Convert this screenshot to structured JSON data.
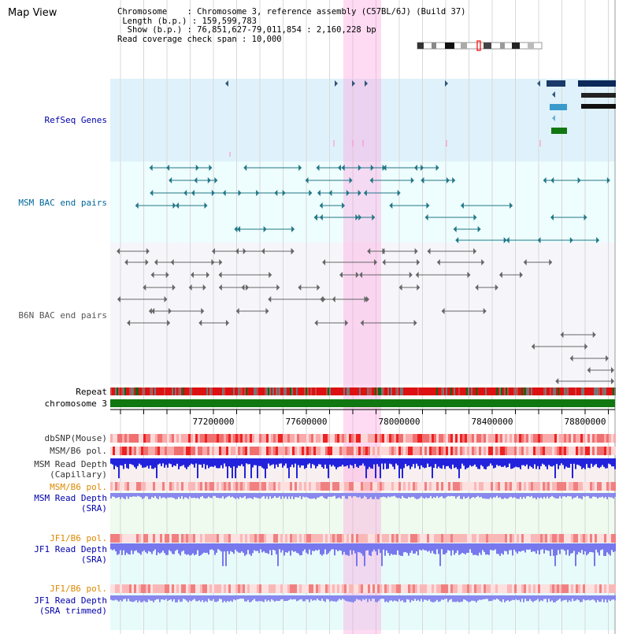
{
  "app": {
    "title": "Map View"
  },
  "info": {
    "chromosome": "Chromosome    : Chromosome 3, reference assembly (C57BL/6J) (Build 37)",
    "length": " Length (b.p.) : 159,599,783",
    "show": "  Show (b.p.) : 76,851,627-79,011,854 : 2,160,228 bp",
    "coverage": "Read coverage check span : 10,000"
  },
  "tracks": {
    "refseq": "RefSeq Genes",
    "msm_bac": "MSM BAC end pairs",
    "b6n_bac": "B6N BAC end pairs",
    "repeat": "Repeat",
    "chromosome": "chromosome 3",
    "dbsnp": "dbSNP(Mouse)",
    "msm_b6_pol_1": "MSM/B6 pol.",
    "msm_read_cap_1": "MSM Read Depth",
    "msm_read_cap_2": "(Capillary)",
    "msm_b6_pol_2": "MSM/B6 pol.",
    "msm_read_sra_1": "MSM Read Depth",
    "msm_read_sra_2": "(SRA)",
    "jf1_b6_pol_1": "JF1/B6 pol.",
    "jf1_read_sra_1": "JF1 Read Depth",
    "jf1_read_sra_2": "(SRA)",
    "jf1_b6_pol_2": "JF1/B6 pol.",
    "jf1_read_trim_1": "JF1 Read Depth",
    "jf1_read_trim_2": "(SRA trimmed)"
  },
  "axis": {
    "ticks": [
      "77200000",
      "77600000",
      "78000000",
      "78400000",
      "78800000"
    ]
  },
  "colors": {
    "refseq_label": "#0000aa",
    "msm_bac_label": "#006699",
    "b6n_bac_label": "#555555",
    "pol_orange": "#dd8800",
    "depth_blue": "#0000aa",
    "highlight": "#ff99dd"
  }
}
